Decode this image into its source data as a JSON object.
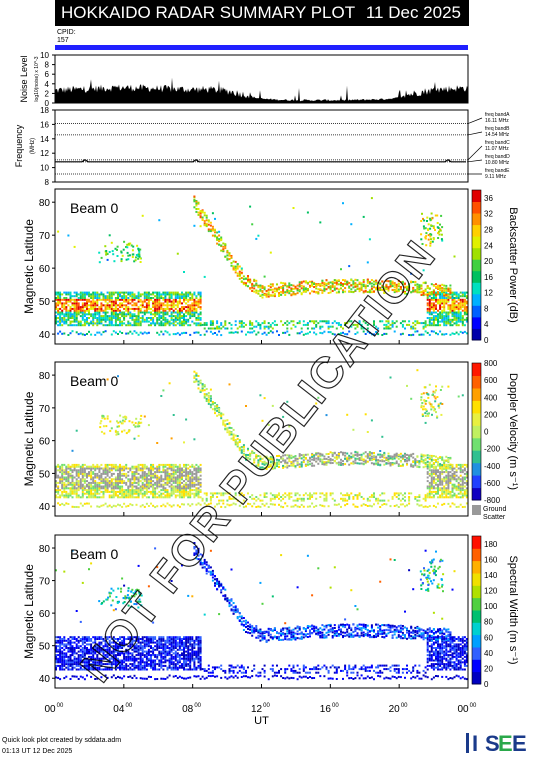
{
  "header": {
    "title": "HOKKAIDO RADAR SUMMARY PLOT",
    "date": "11 Dec 2025"
  },
  "cpid": {
    "label": "CPID:",
    "value": "157"
  },
  "footer": {
    "credit": "Quick look plot created by sddata.adm",
    "timestamp": "01:13 UT 12 Dec 2025"
  },
  "logo": {
    "text": "ISEE"
  },
  "watermark": "NOT FOR PUBLICATION",
  "colors": {
    "bar": "#2020ff",
    "ground": "#999999"
  },
  "chart_data": [
    {
      "type": "area",
      "ylabel": "Noise Level",
      "ylabel_sub": "log10(noise) x 10^-3",
      "yticks": [
        "0",
        "2",
        "4",
        "6",
        "8",
        "10"
      ],
      "ylim": [
        0,
        10
      ],
      "x_hours": [
        0,
        1,
        2,
        3,
        4,
        5,
        6,
        7,
        8,
        9,
        10,
        11,
        12,
        13,
        14,
        15,
        16,
        17,
        18,
        19,
        20,
        21,
        22,
        23,
        24
      ],
      "noise": [
        2.3,
        2.5,
        2.6,
        2.8,
        2.9,
        2.8,
        2.7,
        2.6,
        2.5,
        2.5,
        2.2,
        1.5,
        0.8,
        0.6,
        0.5,
        0.5,
        0.5,
        0.5,
        0.6,
        0.7,
        1.0,
        1.8,
        2.4,
        2.7,
        2.8
      ]
    },
    {
      "type": "line",
      "ylabel": "Frequency",
      "ylabel_unit": "(MHz)",
      "yticks": [
        "8",
        "10",
        "12",
        "14",
        "16",
        "18"
      ],
      "ylim": [
        8,
        18
      ],
      "bands": [
        {
          "label": "freq bandA",
          "value": "16.11 MHz",
          "f": 16.11
        },
        {
          "label": "freq bandB",
          "value": "14.54 MHz",
          "f": 14.54
        },
        {
          "label": "freq bandC",
          "value": "11.07 MHz",
          "f": 11.07
        },
        {
          "label": "freq bandD",
          "value": "10.80 MHz",
          "f": 10.8
        },
        {
          "label": "freq bandE",
          "value": "9.11 MHz",
          "f": 9.11
        }
      ]
    },
    {
      "type": "heatmap",
      "beam_label": "Beam 0",
      "ylabel": "Magnetic Latitude",
      "yticks": [
        "40",
        "50",
        "60",
        "70",
        "80"
      ],
      "ylim": [
        37,
        84
      ],
      "colorbar_label": "Backscatter Power (dB)",
      "colorbar_ticks": [
        "0",
        "4",
        "8",
        "12",
        "16",
        "20",
        "24",
        "28",
        "32",
        "36"
      ],
      "clim": [
        0,
        38
      ],
      "palette": "power"
    },
    {
      "type": "heatmap",
      "beam_label": "Beam 0",
      "ylabel": "Magnetic Latitude",
      "yticks": [
        "40",
        "50",
        "60",
        "70",
        "80"
      ],
      "ylim": [
        37,
        84
      ],
      "colorbar_label": "Doppler Velocity (m s⁻¹)",
      "colorbar_ticks": [
        "800",
        "600",
        "400",
        "200",
        "0",
        "-200",
        "-400",
        "-600",
        "-800"
      ],
      "clim": [
        -800,
        800
      ],
      "palette": "velocity",
      "ground_label": "Ground",
      "ground_label2": "Scatter"
    },
    {
      "type": "heatmap",
      "beam_label": "Beam 0",
      "ylabel": "Magnetic Latitude",
      "yticks": [
        "40",
        "50",
        "60",
        "70",
        "80"
      ],
      "ylim": [
        37,
        84
      ],
      "colorbar_label": "Spectral Width (m s⁻¹)",
      "colorbar_ticks": [
        "0",
        "20",
        "40",
        "60",
        "80",
        "100",
        "120",
        "140",
        "160",
        "180"
      ],
      "clim": [
        0,
        190
      ],
      "palette": "width"
    }
  ],
  "xaxis": {
    "label": "UT",
    "ticks": [
      "00",
      "04",
      "08",
      "12",
      "16",
      "20",
      "00"
    ],
    "sup": "00"
  }
}
